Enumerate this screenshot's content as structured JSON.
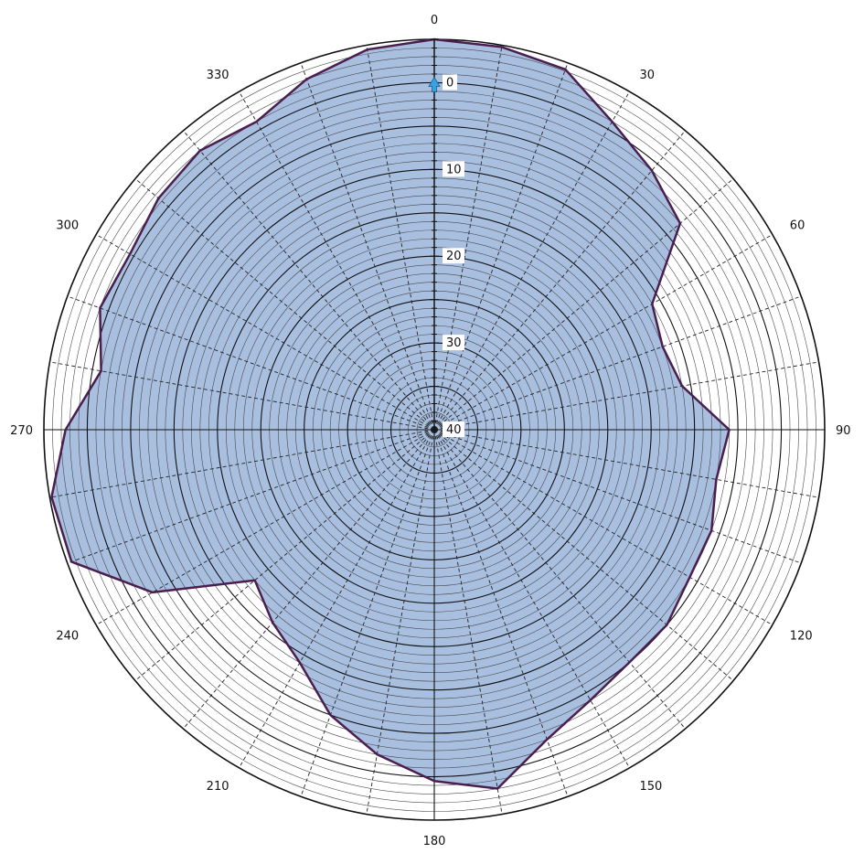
{
  "chart_data": {
    "type": "radar",
    "title": "",
    "angle_axis": {
      "unit": "degrees",
      "direction": "clockwise",
      "zero_at": "top",
      "tick_labels": [
        "0",
        "30",
        "60",
        "90",
        "120",
        "150",
        "180",
        "210",
        "240",
        "270",
        "300",
        "330"
      ],
      "tick_values": [
        0,
        30,
        60,
        90,
        120,
        150,
        180,
        210,
        240,
        270,
        300,
        330
      ],
      "minor_spoke_step": 10
    },
    "radial_axis": {
      "reversed": true,
      "outer_value": -5,
      "center_value": 40,
      "tick_labels": [
        "0",
        "10",
        "20",
        "30",
        "40"
      ],
      "tick_values": [
        0,
        10,
        20,
        30,
        40
      ],
      "minor_ring_step": 1,
      "major_ring_step": 5
    },
    "series": [
      {
        "values": [
          {
            "angle": 0,
            "r": -5.0
          },
          {
            "angle": 10,
            "r": -4.8
          },
          {
            "angle": 20,
            "r": -4.2
          },
          {
            "angle": 30,
            "r": -1.0
          },
          {
            "angle": 40,
            "r": 1.0
          },
          {
            "angle": 50,
            "r": 3.0
          },
          {
            "angle": 60,
            "r": 11.0
          },
          {
            "angle": 70,
            "r": 12.0
          },
          {
            "angle": 80,
            "r": 11.0
          },
          {
            "angle": 90,
            "r": 6.0
          },
          {
            "angle": 100,
            "r": 7.0
          },
          {
            "angle": 110,
            "r": 6.0
          },
          {
            "angle": 120,
            "r": 6.0
          },
          {
            "angle": 130,
            "r": 5.0
          },
          {
            "angle": 140,
            "r": 5.0
          },
          {
            "angle": 150,
            "r": 4.0
          },
          {
            "angle": 160,
            "r": 2.0
          },
          {
            "angle": 170,
            "r": -2.0
          },
          {
            "angle": 180,
            "r": -0.5
          },
          {
            "angle": 190,
            "r": 2.0
          },
          {
            "angle": 200,
            "r": 5.0
          },
          {
            "angle": 210,
            "r": 9.0
          },
          {
            "angle": 220,
            "r": 11.0
          },
          {
            "angle": 230,
            "r": 13.0
          },
          {
            "angle": 240,
            "r": 2.5
          },
          {
            "angle": 250,
            "r": -4.5
          },
          {
            "angle": 260,
            "r": -4.8
          },
          {
            "angle": 270,
            "r": -2.5
          },
          {
            "angle": 280,
            "r": 1.0
          },
          {
            "angle": 290,
            "r": -1.0
          },
          {
            "angle": 300,
            "r": -0.5
          },
          {
            "angle": 310,
            "r": -1.5
          },
          {
            "angle": 320,
            "r": -2.0
          },
          {
            "angle": 330,
            "r": -1.0
          },
          {
            "angle": 340,
            "r": -3.0
          },
          {
            "angle": 350,
            "r": -4.5
          }
        ],
        "fill_color": "#a9bfe0",
        "line_color": "#4a1f4f"
      }
    ],
    "grid": true,
    "colors": {
      "minor_ring": "#4a4a4a",
      "major_ring": "#111111",
      "spoke_major": "#111111",
      "spoke_minor": "#222222",
      "zero_marker": "#3aa0e0"
    }
  }
}
